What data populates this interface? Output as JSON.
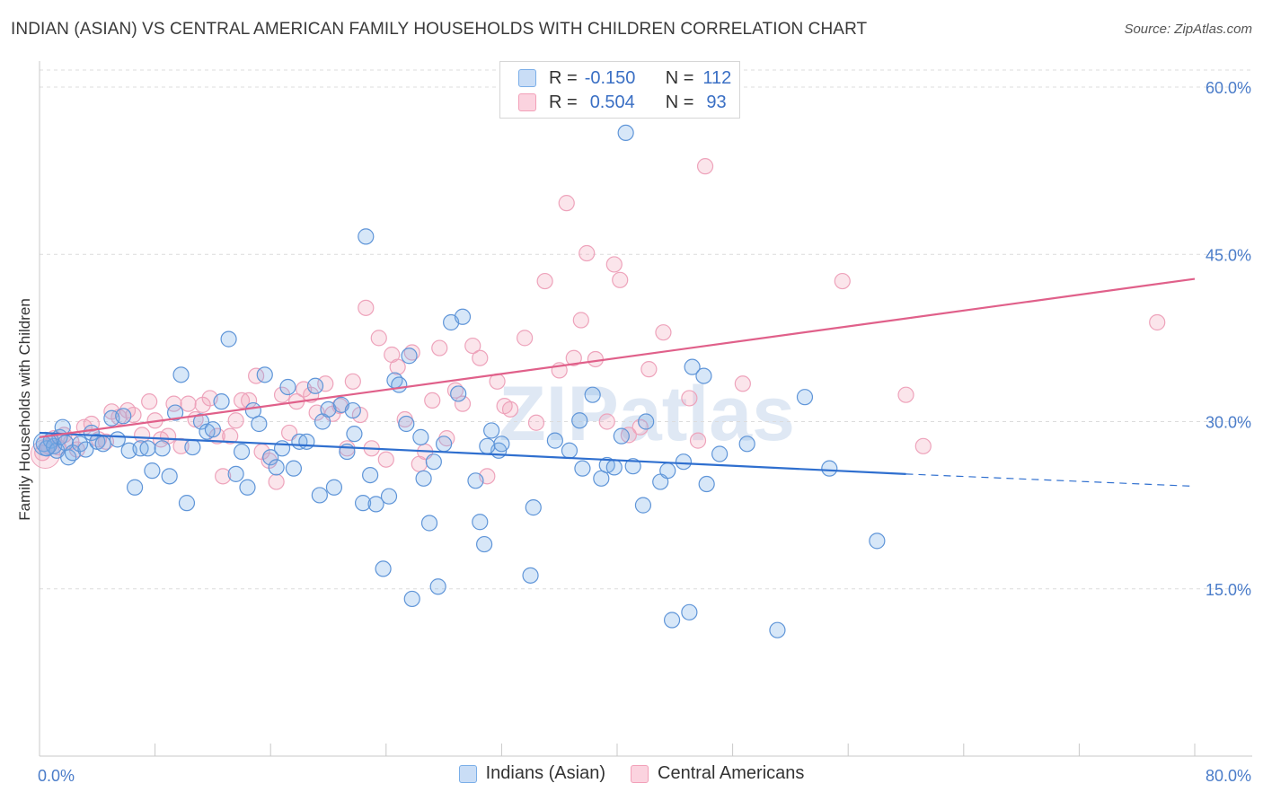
{
  "title": "INDIAN (ASIAN) VS CENTRAL AMERICAN FAMILY HOUSEHOLDS WITH CHILDREN CORRELATION CHART",
  "source": "Source: ZipAtlas.com",
  "watermark": "ZIPatlas",
  "legend": {
    "rows": [
      {
        "r_label": "R =",
        "r_value": "-0.150",
        "n_label": "N =",
        "n_value": "112",
        "color": "#7aaee8"
      },
      {
        "r_label": "R =",
        "r_value": "0.504",
        "n_label": "N =",
        "n_value": "93",
        "color": "#f2a0b8"
      }
    ]
  },
  "bottom_legend": [
    {
      "label": "Indians (Asian)",
      "color": "#7aaee8"
    },
    {
      "label": "Central Americans",
      "color": "#f2a0b8"
    }
  ],
  "chart_data": {
    "type": "scatter",
    "title": "INDIAN (ASIAN) VS CENTRAL AMERICAN FAMILY HOUSEHOLDS WITH CHILDREN CORRELATION CHART",
    "xlabel": "",
    "ylabel": "Family Households with Children",
    "xlim": [
      0,
      80
    ],
    "ylim": [
      0,
      60
    ],
    "x_tick_labels": [
      "0.0%",
      "80.0%"
    ],
    "y_ticks": [
      15,
      30,
      45,
      60
    ],
    "y_tick_labels": [
      "15.0%",
      "30.0%",
      "45.0%",
      "60.0%"
    ],
    "grid": true,
    "colors": {
      "indians": "#6a9fe0",
      "central": "#f0a0b8",
      "indians_line": "#2f6fcf",
      "central_line": "#e0608a"
    },
    "series": [
      {
        "name": "Indians (Asian)",
        "r": -0.15,
        "n": 112,
        "trend": {
          "x0": 0,
          "y0": 29.0,
          "x1": 60,
          "y1": 25.3,
          "dash_to_x": 80,
          "dash_to_y": 24.2
        },
        "points": [
          [
            0.3,
            28.0
          ],
          [
            0.5,
            27.6
          ],
          [
            0.8,
            28.3
          ],
          [
            1.0,
            27.8
          ],
          [
            1.2,
            27.4
          ],
          [
            1.4,
            28.6
          ],
          [
            1.6,
            29.5
          ],
          [
            1.8,
            28.1
          ],
          [
            2.0,
            26.8
          ],
          [
            2.3,
            27.2
          ],
          [
            2.8,
            28.0
          ],
          [
            3.2,
            27.5
          ],
          [
            3.6,
            29.0
          ],
          [
            4.0,
            28.2
          ],
          [
            4.4,
            28.0
          ],
          [
            5.0,
            30.3
          ],
          [
            5.4,
            28.4
          ],
          [
            5.8,
            30.5
          ],
          [
            6.2,
            27.4
          ],
          [
            6.6,
            24.1
          ],
          [
            7.0,
            27.6
          ],
          [
            7.5,
            27.6
          ],
          [
            7.8,
            25.6
          ],
          [
            8.5,
            27.6
          ],
          [
            9.0,
            25.1
          ],
          [
            9.4,
            30.8
          ],
          [
            9.8,
            34.2
          ],
          [
            10.6,
            27.7
          ],
          [
            10.2,
            22.7
          ],
          [
            11.2,
            30.0
          ],
          [
            11.6,
            29.1
          ],
          [
            12.0,
            29.3
          ],
          [
            12.6,
            31.8
          ],
          [
            13.1,
            37.4
          ],
          [
            13.6,
            25.3
          ],
          [
            14.0,
            27.3
          ],
          [
            14.4,
            24.1
          ],
          [
            14.8,
            31.0
          ],
          [
            15.2,
            29.8
          ],
          [
            15.6,
            34.2
          ],
          [
            16.0,
            26.8
          ],
          [
            16.4,
            25.9
          ],
          [
            16.8,
            27.6
          ],
          [
            17.2,
            33.1
          ],
          [
            17.6,
            25.8
          ],
          [
            18.0,
            28.2
          ],
          [
            18.5,
            28.2
          ],
          [
            19.1,
            33.2
          ],
          [
            19.4,
            23.4
          ],
          [
            19.6,
            30.0
          ],
          [
            20.0,
            31.1
          ],
          [
            20.4,
            24.1
          ],
          [
            20.9,
            31.5
          ],
          [
            21.3,
            27.3
          ],
          [
            21.7,
            31.0
          ],
          [
            21.8,
            28.9
          ],
          [
            22.4,
            22.7
          ],
          [
            22.6,
            46.6
          ],
          [
            22.9,
            25.2
          ],
          [
            23.3,
            22.6
          ],
          [
            23.8,
            16.8
          ],
          [
            24.2,
            23.3
          ],
          [
            24.6,
            33.7
          ],
          [
            24.9,
            33.3
          ],
          [
            25.4,
            29.8
          ],
          [
            25.6,
            35.9
          ],
          [
            25.8,
            14.1
          ],
          [
            26.4,
            28.6
          ],
          [
            26.6,
            24.9
          ],
          [
            27.0,
            20.9
          ],
          [
            27.3,
            26.4
          ],
          [
            27.6,
            15.2
          ],
          [
            28.0,
            28.0
          ],
          [
            28.5,
            38.9
          ],
          [
            29.0,
            32.5
          ],
          [
            29.3,
            39.4
          ],
          [
            30.2,
            24.7
          ],
          [
            30.8,
            19.0
          ],
          [
            31.3,
            29.2
          ],
          [
            31.8,
            27.4
          ],
          [
            32.0,
            28.0
          ],
          [
            34.2,
            22.3
          ],
          [
            34.0,
            16.2
          ],
          [
            35.7,
            28.3
          ],
          [
            36.7,
            27.4
          ],
          [
            37.4,
            30.1
          ],
          [
            37.6,
            25.8
          ],
          [
            38.3,
            32.4
          ],
          [
            38.9,
            24.9
          ],
          [
            39.3,
            26.1
          ],
          [
            39.8,
            25.9
          ],
          [
            40.3,
            28.7
          ],
          [
            40.6,
            55.9
          ],
          [
            41.1,
            26.0
          ],
          [
            41.8,
            22.5
          ],
          [
            42.0,
            30.0
          ],
          [
            43.0,
            24.6
          ],
          [
            43.5,
            25.6
          ],
          [
            43.8,
            12.2
          ],
          [
            44.6,
            26.4
          ],
          [
            45.0,
            12.9
          ],
          [
            45.2,
            34.9
          ],
          [
            46.0,
            34.1
          ],
          [
            46.2,
            24.4
          ],
          [
            47.1,
            27.1
          ],
          [
            49.0,
            28.0
          ],
          [
            51.1,
            11.3
          ],
          [
            53.0,
            32.2
          ],
          [
            54.7,
            25.8
          ],
          [
            58.0,
            19.3
          ],
          [
            30.5,
            21.0
          ],
          [
            31.0,
            27.8
          ]
        ]
      },
      {
        "name": "Central Americans",
        "r": 0.504,
        "n": 93,
        "trend": {
          "x0": 0,
          "y0": 28.6,
          "x1": 80,
          "y1": 42.8
        },
        "points": [
          [
            0.2,
            27.2
          ],
          [
            0.6,
            27.8
          ],
          [
            1.0,
            28.5
          ],
          [
            1.3,
            27.7
          ],
          [
            1.7,
            28.8
          ],
          [
            2.2,
            28.2
          ],
          [
            2.6,
            27.5
          ],
          [
            3.1,
            29.5
          ],
          [
            3.6,
            29.8
          ],
          [
            4.1,
            28.4
          ],
          [
            4.6,
            28.2
          ],
          [
            5.0,
            30.9
          ],
          [
            5.5,
            30.4
          ],
          [
            6.1,
            31.0
          ],
          [
            6.5,
            30.6
          ],
          [
            7.1,
            28.8
          ],
          [
            7.6,
            31.8
          ],
          [
            8.0,
            30.1
          ],
          [
            8.4,
            28.4
          ],
          [
            8.9,
            28.7
          ],
          [
            9.3,
            31.6
          ],
          [
            9.8,
            27.8
          ],
          [
            10.3,
            31.6
          ],
          [
            10.8,
            30.2
          ],
          [
            11.3,
            31.5
          ],
          [
            11.8,
            32.1
          ],
          [
            12.3,
            28.7
          ],
          [
            12.7,
            25.1
          ],
          [
            13.2,
            28.7
          ],
          [
            13.6,
            30.1
          ],
          [
            14.0,
            31.9
          ],
          [
            14.5,
            31.9
          ],
          [
            15.0,
            34.1
          ],
          [
            15.4,
            27.3
          ],
          [
            15.9,
            26.5
          ],
          [
            16.4,
            24.6
          ],
          [
            16.8,
            32.4
          ],
          [
            17.3,
            29.0
          ],
          [
            17.8,
            31.8
          ],
          [
            18.3,
            32.9
          ],
          [
            18.8,
            32.4
          ],
          [
            19.2,
            30.8
          ],
          [
            19.8,
            33.4
          ],
          [
            20.3,
            30.7
          ],
          [
            20.8,
            31.4
          ],
          [
            21.3,
            27.6
          ],
          [
            21.7,
            33.6
          ],
          [
            22.2,
            30.6
          ],
          [
            22.6,
            40.2
          ],
          [
            23.0,
            27.6
          ],
          [
            23.5,
            37.5
          ],
          [
            24.0,
            26.6
          ],
          [
            24.4,
            36.0
          ],
          [
            24.8,
            34.9
          ],
          [
            25.3,
            30.2
          ],
          [
            25.8,
            36.2
          ],
          [
            26.3,
            26.2
          ],
          [
            26.7,
            27.3
          ],
          [
            27.2,
            31.9
          ],
          [
            27.7,
            36.6
          ],
          [
            28.2,
            28.5
          ],
          [
            28.8,
            32.8
          ],
          [
            29.3,
            31.6
          ],
          [
            30.0,
            36.8
          ],
          [
            30.5,
            35.7
          ],
          [
            31.0,
            25.1
          ],
          [
            31.7,
            33.6
          ],
          [
            32.2,
            31.4
          ],
          [
            32.6,
            31.1
          ],
          [
            33.6,
            37.5
          ],
          [
            34.4,
            29.9
          ],
          [
            35.0,
            42.6
          ],
          [
            36.0,
            34.6
          ],
          [
            36.5,
            49.6
          ],
          [
            37.0,
            35.7
          ],
          [
            37.5,
            39.1
          ],
          [
            37.9,
            45.1
          ],
          [
            38.5,
            35.6
          ],
          [
            39.3,
            30.0
          ],
          [
            39.8,
            44.1
          ],
          [
            40.2,
            42.7
          ],
          [
            40.8,
            28.8
          ],
          [
            41.6,
            29.5
          ],
          [
            42.2,
            34.7
          ],
          [
            43.2,
            38.0
          ],
          [
            45.0,
            32.1
          ],
          [
            45.6,
            28.3
          ],
          [
            46.1,
            52.9
          ],
          [
            48.7,
            33.4
          ],
          [
            55.6,
            42.6
          ],
          [
            60.0,
            32.4
          ],
          [
            61.2,
            27.8
          ],
          [
            77.4,
            38.9
          ]
        ]
      }
    ]
  }
}
